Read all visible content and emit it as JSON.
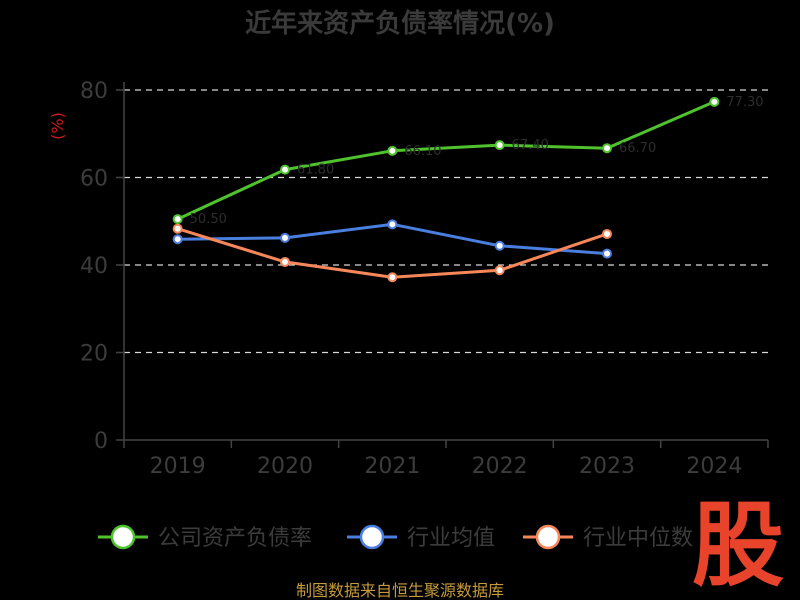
{
  "chart_data": {
    "type": "line",
    "title": "近年来资产负债率情况(%)",
    "ylabel": "(%)",
    "categories": [
      "2019",
      "2020",
      "2021",
      "2022",
      "2023",
      "2024"
    ],
    "yticks": [
      "0",
      "20",
      "40",
      "60",
      "80"
    ],
    "ylim": [
      0,
      80
    ],
    "grid": "horizontal-dashed",
    "legend_position": "bottom",
    "series": [
      {
        "name": "公司资产负债率",
        "color": "#4fc22e",
        "values": [
          50.5,
          61.8,
          66.1,
          67.4,
          66.7,
          77.3
        ]
      },
      {
        "name": "行业均值",
        "color": "#4a7fe0",
        "values": [
          45.9,
          46.2,
          49.3,
          44.4,
          42.6,
          null
        ]
      },
      {
        "name": "行业中位数",
        "color": "#f5875a",
        "values": [
          48.3,
          40.7,
          37.2,
          38.8,
          47.1,
          null
        ]
      }
    ]
  },
  "footer": {
    "source": "制图数据来自恒生聚源数据库"
  },
  "watermark": {
    "text": "股"
  }
}
